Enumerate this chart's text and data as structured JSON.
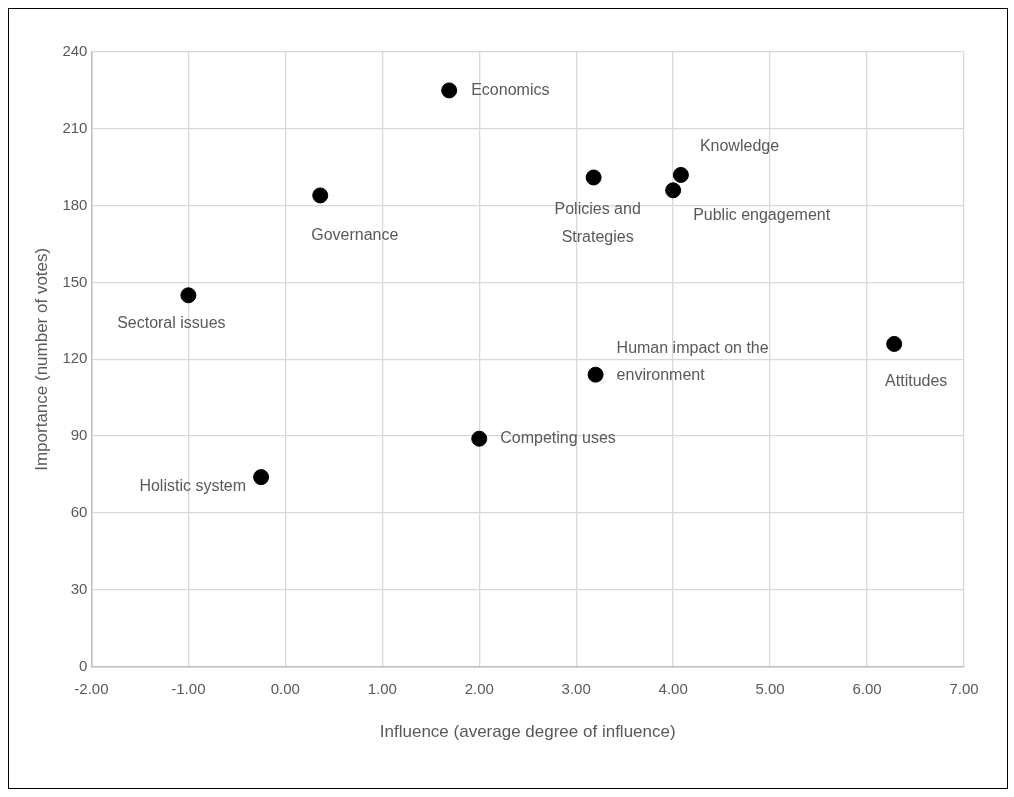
{
  "chart_data": {
    "type": "scatter",
    "xlabel": "Influence (average degree of influence)",
    "ylabel": "Importance (number of votes)",
    "series": [
      {
        "color": "#000000",
        "x": [
          1.69,
          0.36,
          -1.0,
          3.18,
          4.08,
          4.0,
          6.28,
          3.2,
          2.0,
          -0.25
        ],
        "values": [
          225,
          184,
          145,
          191,
          192,
          186,
          126,
          114,
          89,
          74
        ]
      }
    ],
    "annotations": [
      {
        "text": "Economics",
        "x": 1.69,
        "y": 225
      },
      {
        "text": "Governance",
        "x": 0.36,
        "y": 184
      },
      {
        "text": "Sectoral issues",
        "x": -1.0,
        "y": 145
      },
      {
        "text": "Policies and Strategies",
        "x": 3.18,
        "y": 191
      },
      {
        "text": "Knowledge",
        "x": 4.08,
        "y": 192
      },
      {
        "text": "Public engagement",
        "x": 4.0,
        "y": 186
      },
      {
        "text": "Attitudes",
        "x": 6.28,
        "y": 126
      },
      {
        "text": "Human impact on the environment",
        "x": 3.2,
        "y": 114
      },
      {
        "text": "Competing uses",
        "x": 2.0,
        "y": 89
      },
      {
        "text": "Holistic system",
        "x": -0.25,
        "y": 74
      }
    ],
    "xlim": [
      -2,
      7
    ],
    "xticks": [
      {
        "value": -2,
        "label": "-2.00"
      },
      {
        "value": -1,
        "label": "-1.00"
      },
      {
        "value": 0,
        "label": "0.00"
      },
      {
        "value": 1,
        "label": "1.00"
      },
      {
        "value": 2,
        "label": "2.00"
      },
      {
        "value": 3,
        "label": "3.00"
      },
      {
        "value": 4,
        "label": "4.00"
      },
      {
        "value": 5,
        "label": "5.00"
      },
      {
        "value": 6,
        "label": "6.00"
      },
      {
        "value": 7,
        "label": "7.00"
      }
    ],
    "ylim": [
      0,
      240
    ],
    "yticks": [
      0,
      30,
      60,
      90,
      120,
      150,
      180,
      210,
      240
    ],
    "grid": true,
    "legend": false,
    "marker": "circle"
  }
}
